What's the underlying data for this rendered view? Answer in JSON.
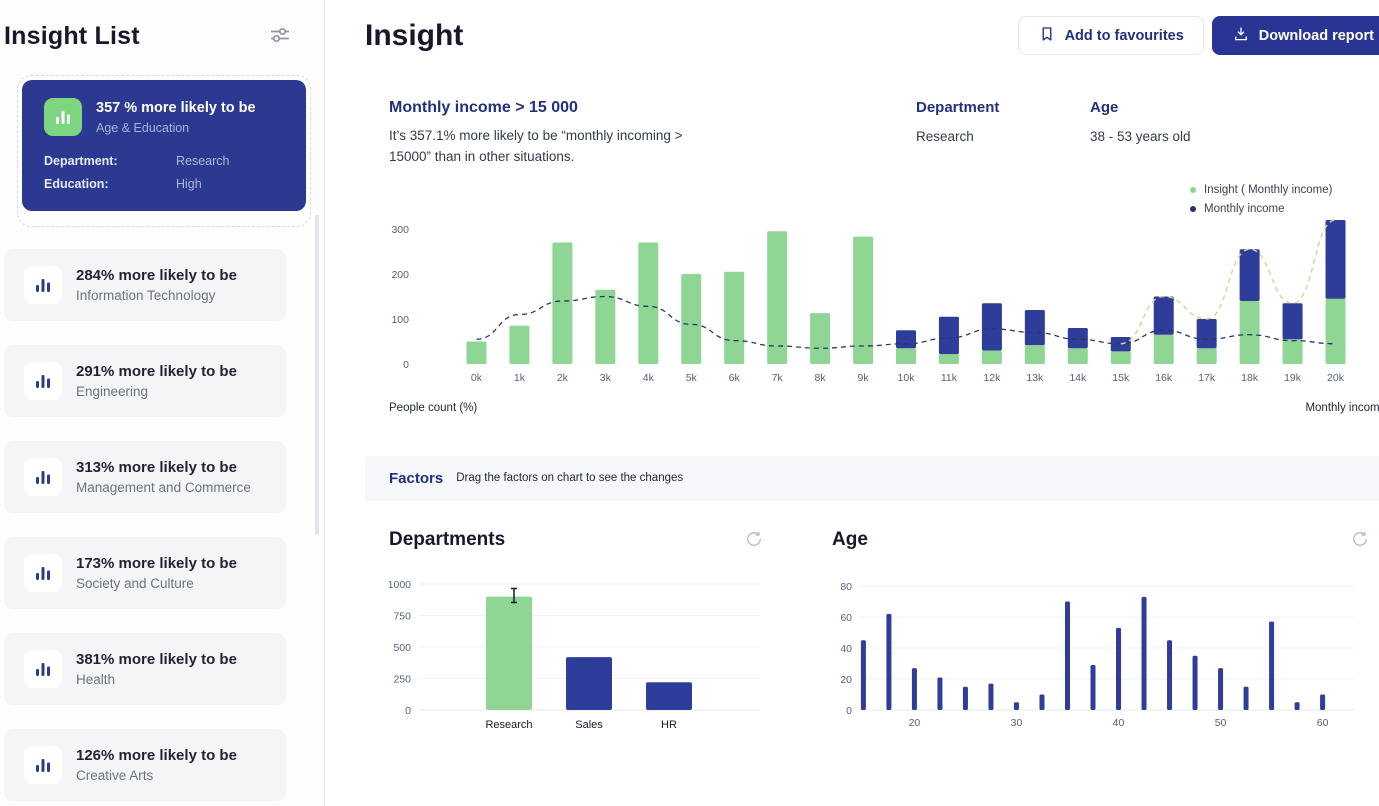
{
  "sidebar": {
    "title": "Insight List",
    "selected": {
      "title": "357 % more likely to be",
      "subtitle": "Age & Education",
      "rows": [
        {
          "label": "Department:",
          "value": "Research"
        },
        {
          "label": "Education:",
          "value": "High"
        }
      ]
    },
    "items": [
      {
        "title": "284% more likely to be",
        "subtitle": "Information Technology"
      },
      {
        "title": "291% more likely to be",
        "subtitle": "Engineering"
      },
      {
        "title": "313% more likely to be",
        "subtitle": "Management and Commerce"
      },
      {
        "title": "173% more likely to be",
        "subtitle": "Society and Culture"
      },
      {
        "title": "381% more likely to be",
        "subtitle": "Health"
      },
      {
        "title": "126% more likely to be",
        "subtitle": "Creative Arts"
      }
    ]
  },
  "header": {
    "title": "Insight",
    "favourites_label": "Add to favourites",
    "download_label": "Download report"
  },
  "insight": {
    "title": "Monthly income > 15 000",
    "description": "It’s 357.1% more likely to be “monthly incoming > 15000” than in other situations.",
    "department_label": "Department",
    "department_value": "Research",
    "age_label": "Age",
    "age_value": "38 - 53 years old",
    "legend": [
      {
        "label": "Insight ( Monthly income)",
        "color": "#8fd694"
      },
      {
        "label": "Monthly income",
        "color": "#22307e"
      }
    ],
    "ylabel": "People count (%)",
    "xlabel": "Monthly income"
  },
  "factors": {
    "title": "Factors",
    "hint": "Drag the factors on chart to see the changes"
  },
  "sections": {
    "departments_title": "Departments",
    "age_title": "Age"
  },
  "colors": {
    "navy": "#283593",
    "green": "#8fd694",
    "heading_navy": "#22307e"
  },
  "chart_data": [
    {
      "type": "bar",
      "title": "Monthly income > 15 000",
      "xlabel": "Monthly income",
      "ylabel": "People count (%)",
      "ylim": [
        0,
        300
      ],
      "yticks": [
        0,
        100,
        200,
        300
      ],
      "legend_position": "top-right",
      "categories": [
        "0k",
        "1k",
        "2k",
        "3k",
        "4k",
        "5k",
        "6k",
        "7k",
        "8k",
        "9k",
        "10k",
        "11k",
        "12k",
        "13k",
        "14k",
        "15k",
        "16k",
        "17k",
        "18k",
        "19k",
        "20k"
      ],
      "series": [
        {
          "name": "Insight ( Monthly income)",
          "color": "#8fd694",
          "values": [
            50,
            85,
            270,
            165,
            270,
            200,
            205,
            295,
            113,
            283,
            35,
            22,
            30,
            42,
            35,
            28,
            65,
            35,
            140,
            55,
            145
          ]
        },
        {
          "name": "Monthly income",
          "color": "#2e3d99",
          "stacked": true,
          "values": [
            0,
            0,
            0,
            0,
            0,
            0,
            0,
            0,
            0,
            0,
            40,
            83,
            105,
            78,
            45,
            32,
            85,
            65,
            115,
            80,
            175
          ]
        }
      ],
      "line": {
        "name": "distribution",
        "color": "#2b3766",
        "dashed": true,
        "values": [
          55,
          110,
          140,
          150,
          128,
          88,
          52,
          40,
          35,
          40,
          45,
          58,
          78,
          70,
          55,
          45,
          75,
          55,
          65,
          52,
          45
        ]
      },
      "line2": {
        "name": "insight-distribution",
        "color": "#ccd78f",
        "dashed": true,
        "start_index": 15,
        "values": [
          45,
          150,
          100,
          255,
          135,
          320
        ]
      }
    },
    {
      "type": "bar",
      "title": "Departments",
      "categories": [
        "Research",
        "Sales",
        "HR"
      ],
      "values": [
        900,
        420,
        220
      ],
      "colors": [
        "#8fd694",
        "#2e3d99",
        "#2e3d99"
      ],
      "ylim": [
        0,
        1000
      ],
      "yticks": [
        0,
        250,
        500,
        750,
        1000
      ]
    },
    {
      "type": "bar",
      "title": "Age",
      "color": "#2e3d99",
      "ylim": [
        0,
        80
      ],
      "yticks": [
        0,
        20,
        40,
        60,
        80
      ],
      "xlim": [
        13,
        62
      ],
      "xticks": [
        20,
        30,
        40,
        50,
        60
      ],
      "points": [
        [
          15,
          45
        ],
        [
          17.5,
          62
        ],
        [
          20,
          27
        ],
        [
          22.5,
          21
        ],
        [
          25,
          15
        ],
        [
          27.5,
          17
        ],
        [
          30,
          5
        ],
        [
          32.5,
          10
        ],
        [
          35,
          70
        ],
        [
          37.5,
          29
        ],
        [
          40,
          53
        ],
        [
          42.5,
          73
        ],
        [
          45,
          45
        ],
        [
          47.5,
          35
        ],
        [
          50,
          27
        ],
        [
          52.5,
          15
        ],
        [
          55,
          57
        ],
        [
          57.5,
          5
        ],
        [
          60,
          10
        ]
      ]
    }
  ]
}
